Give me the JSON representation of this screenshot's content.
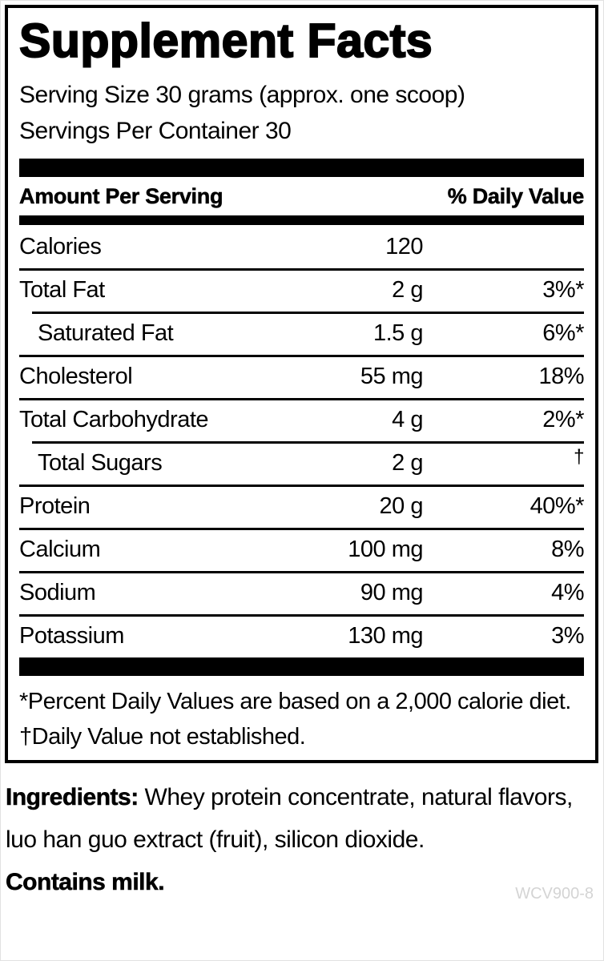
{
  "panel": {
    "title": "Supplement Facts",
    "serving": {
      "size_line": "Serving Size 30 grams (approx. one scoop)",
      "per_container_line": "Servings Per Container 30"
    },
    "table": {
      "header": {
        "left": "Amount Per Serving",
        "right": "% Daily Value"
      },
      "rows": [
        {
          "name": "Calories",
          "amount": "120",
          "dv": ""
        },
        {
          "name": "Total Fat",
          "amount": "2 g",
          "dv": "3%*"
        },
        {
          "name": "Saturated Fat",
          "amount": "1.5 g",
          "dv": "6%*"
        },
        {
          "name": "Cholesterol",
          "amount": "55 mg",
          "dv": "18%"
        },
        {
          "name": "Total Carbohydrate",
          "amount": "4 g",
          "dv": "2%*"
        },
        {
          "name": "Total Sugars",
          "amount": "2 g",
          "dv": "†"
        },
        {
          "name": "Protein",
          "amount": "20 g",
          "dv": "40%*"
        },
        {
          "name": "Calcium",
          "amount": "100 mg",
          "dv": "8%"
        },
        {
          "name": "Sodium",
          "amount": "90 mg",
          "dv": "4%"
        },
        {
          "name": "Potassium",
          "amount": "130 mg",
          "dv": "3%"
        }
      ]
    },
    "footnotes": [
      "*Percent Daily Values are based on a 2,000 calorie diet.",
      "†Daily Value not established."
    ]
  },
  "ingredients": {
    "label": "Ingredients:",
    "line1_rest": " Whey protein concentrate, natural flavors,",
    "line2": "luo han guo extract (fruit), silicon dioxide.",
    "contains": "Contains milk."
  },
  "page": {
    "code": "WCV900-8"
  }
}
